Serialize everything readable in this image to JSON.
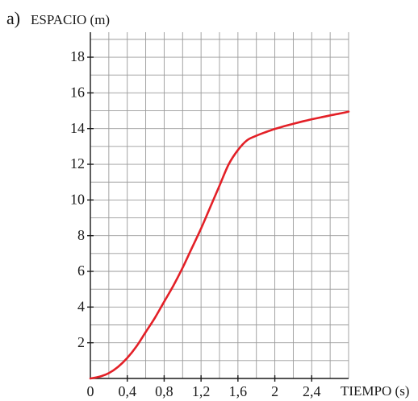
{
  "chart_data": {
    "type": "line",
    "panel_label": "a)",
    "ylabel": "ESPACIO (m)",
    "xlabel": "TIEMPO (s)",
    "xlim": [
      0,
      2.8
    ],
    "ylim": [
      0,
      19.4
    ],
    "x_grid_step": 0.2,
    "y_grid_step": 1,
    "x_ticks": [
      {
        "value": 0,
        "label": "0"
      },
      {
        "value": 0.4,
        "label": "0,4"
      },
      {
        "value": 0.8,
        "label": "0,8"
      },
      {
        "value": 1.2,
        "label": "1,2"
      },
      {
        "value": 1.6,
        "label": "1,6"
      },
      {
        "value": 2.0,
        "label": "2"
      },
      {
        "value": 2.4,
        "label": "2,4"
      }
    ],
    "y_ticks": [
      {
        "value": 2,
        "label": "2"
      },
      {
        "value": 4,
        "label": "4"
      },
      {
        "value": 6,
        "label": "6"
      },
      {
        "value": 8,
        "label": "8"
      },
      {
        "value": 10,
        "label": "10"
      },
      {
        "value": 12,
        "label": "12"
      },
      {
        "value": 14,
        "label": "14"
      },
      {
        "value": 16,
        "label": "16"
      },
      {
        "value": 18,
        "label": "18"
      }
    ],
    "grid": true,
    "series": [
      {
        "color": "#e32027",
        "x": [
          0,
          0.1,
          0.2,
          0.3,
          0.4,
          0.5,
          0.6,
          0.7,
          0.8,
          0.9,
          1.0,
          1.1,
          1.2,
          1.3,
          1.4,
          1.5,
          1.6,
          1.7,
          1.8,
          1.9,
          2.0,
          2.1,
          2.2,
          2.3,
          2.4,
          2.5,
          2.6,
          2.7,
          2.8
        ],
        "y": [
          0,
          0.1,
          0.3,
          0.65,
          1.15,
          1.8,
          2.6,
          3.4,
          4.3,
          5.2,
          6.2,
          7.3,
          8.4,
          9.6,
          10.8,
          12.0,
          12.8,
          13.35,
          13.6,
          13.8,
          13.98,
          14.13,
          14.27,
          14.4,
          14.52,
          14.63,
          14.74,
          14.84,
          14.95
        ]
      }
    ]
  }
}
